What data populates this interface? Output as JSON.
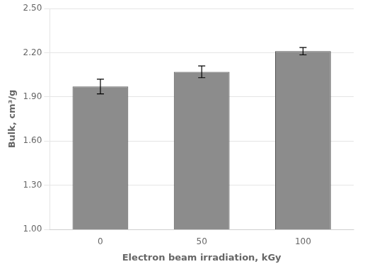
{
  "chart_data": {
    "type": "bar",
    "xlabel": "Electron beam irradiation, kGy",
    "ylabel": "Bulk, cm³/g",
    "categories": [
      "0",
      "50",
      "100"
    ],
    "values": [
      1.97,
      2.07,
      2.21
    ],
    "errors": [
      0.05,
      0.04,
      0.025
    ],
    "color": "#8c8c8c",
    "ylim": [
      1.0,
      2.5
    ],
    "yticks": [
      {
        "value": 1.0,
        "label": "1.00"
      },
      {
        "value": 1.3,
        "label": "1.30"
      },
      {
        "value": 1.6,
        "label": "1.60"
      },
      {
        "value": 1.9,
        "label": "1.90"
      },
      {
        "value": 2.2,
        "label": "2.20"
      },
      {
        "value": 2.5,
        "label": "2.50"
      }
    ],
    "grid": true
  }
}
